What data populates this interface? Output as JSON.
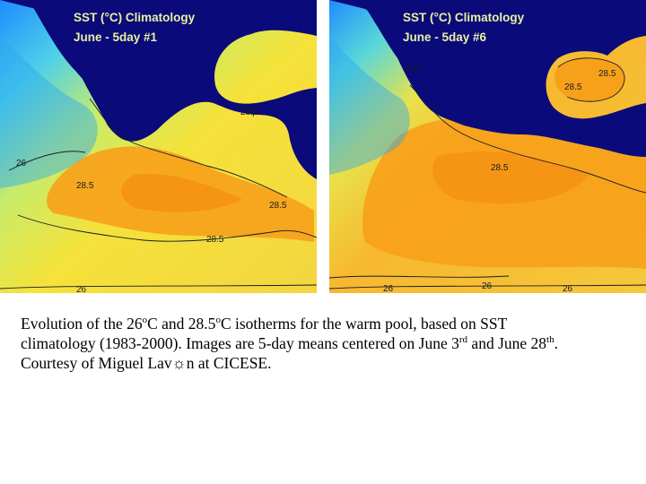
{
  "panels": [
    {
      "title_line1": "SST (°C) Climatology",
      "title_line2": "June - 5day #1",
      "contour_labels": [
        "26",
        "28.5",
        "28.5",
        "28.5",
        "28.5",
        "26"
      ]
    },
    {
      "title_line1": "SST (°C) Climatology",
      "title_line2": "June - 5day #6",
      "contour_labels": [
        "28.5",
        "28.5",
        "28.5",
        "28.5",
        "26",
        "26",
        "26"
      ]
    }
  ],
  "caption": {
    "line1": "Evolution of the 26",
    "sup1": "o",
    "mid1": "C and 28.5",
    "sup2": "o",
    "mid2": "C isotherms for the warm pool, based on SST",
    "line2a": "climatology (1983-2000).  Images are 5-day means centered on June 3",
    "sup3": "rd",
    "line2b": " and June 28",
    "sup4": "th",
    "line2c": ".",
    "line3": "Courtesy of Miguel Lav",
    "glyph": "☼",
    "line3b": "n at CICESE."
  },
  "colors": {
    "land": "#0a0a7a",
    "cold_water": "#1e90ff",
    "cool_water": "#7fe0c0",
    "warm_water": "#f5e23a",
    "hot_water": "#f7a11a",
    "title_text": "#e8f0a0"
  }
}
